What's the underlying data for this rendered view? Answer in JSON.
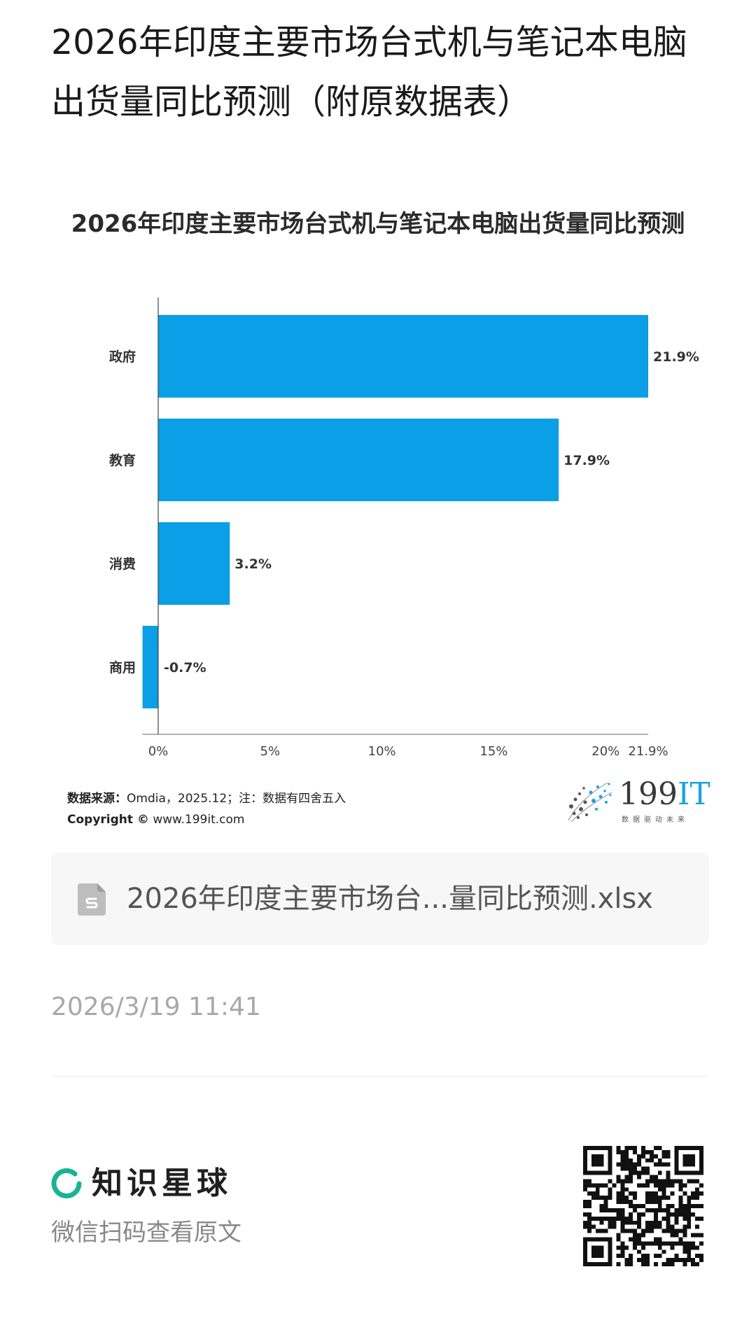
{
  "article": {
    "title": "2026年印度主要市场台式机与笔记本电脑出货量同比预测（附原数据表）"
  },
  "chart_data": {
    "type": "bar",
    "orientation": "horizontal",
    "title": "2026年印度主要市场台式机与笔记本电脑出货量同比预测",
    "categories": [
      "政府",
      "教育",
      "消费",
      "商用"
    ],
    "values": [
      21.9,
      17.9,
      3.2,
      -0.7
    ],
    "value_labels": [
      "21.9%",
      "17.9%",
      "3.2%",
      "-0.7%"
    ],
    "x_ticks": [
      {
        "value": 0,
        "label": "0%"
      },
      {
        "value": 5,
        "label": "5%"
      },
      {
        "value": 10,
        "label": "10%"
      },
      {
        "value": 15,
        "label": "15%"
      },
      {
        "value": 20,
        "label": "20%"
      },
      {
        "value": 21.9,
        "label": "21.9%"
      }
    ],
    "xlim": [
      -0.7,
      21.9
    ],
    "bar_color": "#0a9fe6",
    "grid": false,
    "legend": "none",
    "xlabel": "",
    "ylabel": ""
  },
  "chart_footer": {
    "source_label": "数据来源：",
    "source_text": "Omdia，2025.12；注：数据有四舍五入",
    "copyright_label": "Copyright ©",
    "copyright_text": "www.199it.com"
  },
  "logo": {
    "brand_main": "199",
    "brand_accent": "IT",
    "slogan": "数据驱动未来",
    "accent_color": "#1aa3e0"
  },
  "attachment": {
    "icon": "spreadsheet-file-icon",
    "file_name": "2026年印度主要市场台...量同比预测.xlsx"
  },
  "post": {
    "timestamp": "2026/3/19 11:41"
  },
  "promo": {
    "brand_name": "知识星球",
    "scan_hint": "微信扫码查看原文",
    "brand_color": "#17b394",
    "icon": "qr-code-icon"
  }
}
